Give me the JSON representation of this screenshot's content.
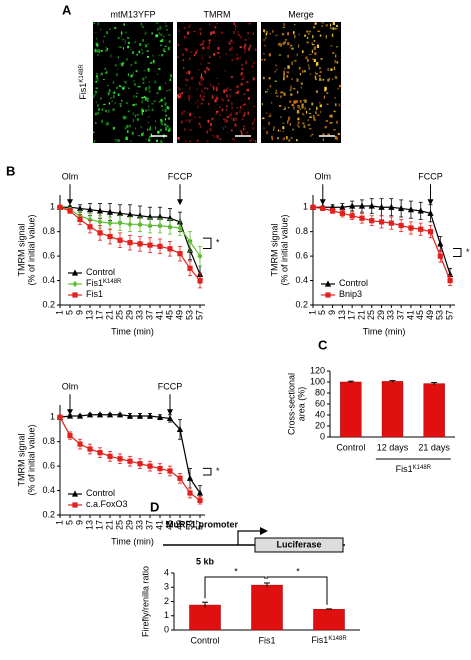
{
  "panel_labels": [
    "A",
    "B",
    "C",
    "D"
  ],
  "panel_a": {
    "row_label": {
      "text": "Fis1",
      "sup": "K148R"
    },
    "channels": [
      "mtM13YFP",
      "TMRM",
      "Merge"
    ]
  },
  "diagram_d": {
    "promoter": "MuRF1 promoter",
    "length": "5 kb",
    "reporter": "Luciferase"
  },
  "chart_data": [
    {
      "type": "line",
      "xlabel": "Time (min)",
      "ylabel": [
        "TMRM signal",
        "(% of initial value)"
      ],
      "x": [
        1,
        5,
        9,
        13,
        17,
        21,
        25,
        29,
        33,
        37,
        41,
        45,
        49,
        53,
        57
      ],
      "xlim": [
        1,
        59
      ],
      "xticks": [
        1,
        5,
        9,
        13,
        17,
        21,
        25,
        29,
        33,
        37,
        41,
        45,
        49,
        53,
        57
      ],
      "ylim": [
        0.2,
        1.1
      ],
      "yticks": [
        0.2,
        0.4,
        0.6,
        0.8,
        1
      ],
      "annotations": [
        {
          "text": "Olm",
          "x": 5
        },
        {
          "text": "FCCP",
          "x": 49
        }
      ],
      "significance": "*",
      "legend": "lower left",
      "series": [
        {
          "name": "Control",
          "color": "#000000",
          "marker": "triangle",
          "values": [
            1,
            1,
            0.99,
            0.98,
            0.97,
            0.96,
            0.95,
            0.94,
            0.93,
            0.92,
            0.92,
            0.91,
            0.88,
            0.65,
            0.45
          ],
          "errors": [
            0,
            0.01,
            0.03,
            0.05,
            0.06,
            0.07,
            0.07,
            0.08,
            0.08,
            0.08,
            0.08,
            0.08,
            0.08,
            0.08,
            0.07
          ]
        },
        {
          "name": "Fis1",
          "name_sup": "K148R",
          "color": "#5cc032",
          "marker": "diamond",
          "values": [
            1,
            0.98,
            0.93,
            0.9,
            0.88,
            0.87,
            0.87,
            0.86,
            0.86,
            0.85,
            0.85,
            0.84,
            0.83,
            0.72,
            0.6
          ],
          "errors": [
            0,
            0.02,
            0.04,
            0.05,
            0.05,
            0.05,
            0.06,
            0.06,
            0.06,
            0.06,
            0.06,
            0.06,
            0.06,
            0.08,
            0.08
          ]
        },
        {
          "name": "Fis1",
          "color": "#e3201b",
          "marker": "square",
          "values": [
            1,
            0.97,
            0.9,
            0.84,
            0.79,
            0.76,
            0.73,
            0.71,
            0.7,
            0.69,
            0.68,
            0.66,
            0.62,
            0.5,
            0.4
          ],
          "errors": [
            0,
            0.02,
            0.04,
            0.05,
            0.06,
            0.06,
            0.06,
            0.06,
            0.06,
            0.06,
            0.06,
            0.06,
            0.06,
            0.06,
            0.06
          ]
        }
      ]
    },
    {
      "type": "line",
      "xlabel": "Time (min)",
      "ylabel": [
        "TMRM signal",
        "(% of initial value)"
      ],
      "x": [
        1,
        5,
        9,
        13,
        17,
        21,
        25,
        29,
        33,
        37,
        41,
        45,
        49,
        53,
        57
      ],
      "xlim": [
        1,
        59
      ],
      "xticks": [
        1,
        5,
        9,
        13,
        17,
        21,
        25,
        29,
        33,
        37,
        41,
        45,
        49,
        53,
        57
      ],
      "ylim": [
        0.2,
        1.1
      ],
      "yticks": [
        0.2,
        0.4,
        0.6,
        0.8,
        1
      ],
      "annotations": [
        {
          "text": "Olm",
          "x": 5
        },
        {
          "text": "FCCP",
          "x": 49
        }
      ],
      "significance": "*",
      "legend": "lower left",
      "series": [
        {
          "name": "Control",
          "color": "#000000",
          "marker": "triangle",
          "values": [
            1,
            1,
            1,
            1,
            1.01,
            1.01,
            1.01,
            1,
            1,
            0.99,
            0.98,
            0.97,
            0.95,
            0.7,
            0.45
          ],
          "errors": [
            0,
            0.01,
            0.02,
            0.03,
            0.04,
            0.05,
            0.06,
            0.07,
            0.07,
            0.07,
            0.07,
            0.07,
            0.07,
            0.06,
            0.05
          ]
        },
        {
          "name": "Bnip3",
          "color": "#e3201b",
          "marker": "square",
          "values": [
            1,
            0.99,
            0.97,
            0.95,
            0.93,
            0.91,
            0.89,
            0.88,
            0.87,
            0.85,
            0.83,
            0.82,
            0.8,
            0.6,
            0.4
          ],
          "errors": [
            0,
            0.01,
            0.02,
            0.03,
            0.03,
            0.04,
            0.04,
            0.05,
            0.05,
            0.05,
            0.05,
            0.05,
            0.05,
            0.05,
            0.04
          ]
        }
      ]
    },
    {
      "type": "line",
      "xlabel": "Time (min)",
      "ylabel": [
        "TMRM signal",
        "(% of initial value)"
      ],
      "x": [
        1,
        5,
        9,
        13,
        17,
        21,
        25,
        29,
        33,
        37,
        41,
        45,
        49,
        53,
        57
      ],
      "xlim": [
        1,
        59
      ],
      "xticks": [
        1,
        5,
        9,
        13,
        17,
        21,
        25,
        29,
        33,
        37,
        41,
        45,
        49,
        53,
        57
      ],
      "ylim": [
        0.2,
        1.1
      ],
      "yticks": [
        0.2,
        0.4,
        0.6,
        0.8,
        1
      ],
      "annotations": [
        {
          "text": "Olm",
          "x": 5
        },
        {
          "text": "FCCP",
          "x": 45
        }
      ],
      "significance": "*",
      "legend": "lower left",
      "series": [
        {
          "name": "Control",
          "color": "#000000",
          "marker": "triangle",
          "values": [
            1,
            1.01,
            1.01,
            1.02,
            1.02,
            1.02,
            1.02,
            1.01,
            1.01,
            1.01,
            1,
            0.99,
            0.9,
            0.5,
            0.38
          ],
          "errors": [
            0,
            0.01,
            0.01,
            0.01,
            0.01,
            0.01,
            0.01,
            0.02,
            0.02,
            0.02,
            0.02,
            0.03,
            0.08,
            0.08,
            0.06
          ]
        },
        {
          "name": "c.a.FoxO3",
          "color": "#e3201b",
          "marker": "square",
          "values": [
            1,
            0.85,
            0.78,
            0.74,
            0.71,
            0.68,
            0.66,
            0.64,
            0.62,
            0.6,
            0.58,
            0.56,
            0.5,
            0.38,
            0.32
          ],
          "errors": [
            0,
            0.03,
            0.04,
            0.04,
            0.04,
            0.04,
            0.04,
            0.04,
            0.04,
            0.04,
            0.04,
            0.04,
            0.04,
            0.04,
            0.03
          ]
        }
      ]
    },
    {
      "type": "bar",
      "ylabel": [
        "Cross-sectional",
        "area (%)"
      ],
      "categories": [
        "Control",
        "12 days",
        "21 days"
      ],
      "group_label": {
        "text": "Fis1",
        "sup": "K148R"
      },
      "values": [
        100,
        101,
        97
      ],
      "errors": [
        1.5,
        1.5,
        2
      ],
      "color": "#e01010",
      "ylim": [
        0,
        120
      ],
      "yticks": [
        0,
        20,
        40,
        60,
        80,
        100,
        120
      ]
    },
    {
      "type": "bar",
      "ylabel": [
        "Firefly/renilla ratio"
      ],
      "categories": [
        "Control",
        "Fis1",
        {
          "text": "Fis1",
          "sup": "K148R"
        }
      ],
      "values": [
        1.75,
        3.15,
        1.45
      ],
      "errors": [
        0.2,
        0.15,
        0.03
      ],
      "color": "#e01010",
      "ylim": [
        0,
        4
      ],
      "yticks": [
        0,
        1,
        2,
        3,
        4
      ],
      "significance_labels": [
        "*",
        "*"
      ]
    }
  ]
}
